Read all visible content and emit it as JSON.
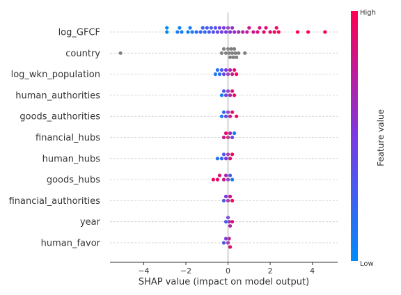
{
  "chart_data": {
    "type": "scatter",
    "subtype": "shap-beeswarm",
    "title": "",
    "xlabel": "SHAP value (impact on model output)",
    "xlim": [
      -5.6,
      5.2
    ],
    "xticks": [
      -4,
      -2,
      0,
      2,
      4
    ],
    "xtick_labels": [
      "−4",
      "−2",
      "0",
      "2",
      "4"
    ],
    "grid": "horizontal per feature, light gray",
    "features": [
      "log_GFCF",
      "country",
      "log_wkn_population",
      "human_authorities",
      "goods_authorities",
      "financial_hubs",
      "human_hubs",
      "goods_hubs",
      "financial_authorities",
      "year",
      "human_favor"
    ],
    "colorbar": {
      "label": "Feature value",
      "high_label": "High",
      "low_label": "Low",
      "low_color": "#008bfb",
      "high_color": "#ff0051"
    },
    "missing_value_color": "#808080",
    "points": [
      [
        [
          -2.9,
          0.0
        ],
        [
          -2.9,
          0.0
        ],
        [
          -2.4,
          0.1
        ],
        [
          -2.3,
          0.05
        ],
        [
          -2.2,
          0.1
        ],
        [
          -1.9,
          0.05
        ],
        [
          -1.8,
          0.1
        ],
        [
          -1.7,
          0.1
        ],
        [
          -1.5,
          0.2
        ],
        [
          -1.3,
          0.2
        ],
        [
          -1.2,
          0.25
        ],
        [
          -1.1,
          0.2
        ],
        [
          -1.0,
          0.3
        ],
        [
          -0.9,
          0.3
        ],
        [
          -0.8,
          0.3
        ],
        [
          -0.7,
          0.35
        ],
        [
          -0.6,
          0.35
        ],
        [
          -0.5,
          0.4
        ],
        [
          -0.4,
          0.45
        ],
        [
          -0.3,
          0.45
        ],
        [
          -0.2,
          0.5
        ],
        [
          -0.1,
          0.5
        ],
        [
          0.0,
          0.55
        ],
        [
          0.1,
          0.55
        ],
        [
          0.2,
          0.6
        ],
        [
          0.3,
          0.6
        ],
        [
          0.5,
          0.65
        ],
        [
          0.7,
          0.7
        ],
        [
          0.9,
          0.75
        ],
        [
          1.0,
          0.8
        ],
        [
          1.2,
          0.8
        ],
        [
          1.4,
          0.85
        ],
        [
          1.5,
          0.85
        ],
        [
          1.7,
          0.9
        ],
        [
          1.8,
          0.9
        ],
        [
          2.0,
          0.9
        ],
        [
          2.2,
          0.95
        ],
        [
          2.3,
          0.95
        ],
        [
          2.4,
          0.95
        ],
        [
          3.3,
          1.0
        ],
        [
          3.8,
          1.0
        ],
        [
          4.6,
          1.0
        ]
      ],
      [
        [
          -5.1,
          null
        ],
        [
          -0.3,
          null
        ],
        [
          -0.2,
          null
        ],
        [
          -0.1,
          null
        ],
        [
          0.0,
          null
        ],
        [
          0.05,
          null
        ],
        [
          0.1,
          null
        ],
        [
          0.15,
          null
        ],
        [
          0.2,
          null
        ],
        [
          0.25,
          null
        ],
        [
          0.3,
          null
        ],
        [
          0.35,
          null
        ],
        [
          0.4,
          null
        ],
        [
          0.5,
          null
        ],
        [
          0.8,
          null
        ]
      ],
      [
        [
          -0.6,
          0.1
        ],
        [
          -0.5,
          0.15
        ],
        [
          -0.4,
          0.2
        ],
        [
          -0.3,
          0.3
        ],
        [
          -0.2,
          0.4
        ],
        [
          -0.1,
          0.5
        ],
        [
          0.0,
          0.6
        ],
        [
          0.1,
          0.7
        ],
        [
          0.2,
          0.8
        ],
        [
          0.3,
          0.9
        ],
        [
          0.4,
          0.95
        ]
      ],
      [
        [
          -0.3,
          0.1
        ],
        [
          -0.2,
          0.3
        ],
        [
          -0.1,
          0.4
        ],
        [
          0.0,
          0.6
        ],
        [
          0.1,
          0.7
        ],
        [
          0.2,
          0.85
        ],
        [
          0.3,
          0.95
        ]
      ],
      [
        [
          -0.3,
          0.1
        ],
        [
          -0.2,
          0.2
        ],
        [
          -0.1,
          0.4
        ],
        [
          0.0,
          0.6
        ],
        [
          0.1,
          0.8
        ],
        [
          0.2,
          0.9
        ],
        [
          0.4,
          0.95
        ]
      ],
      [
        [
          -0.2,
          0.8
        ],
        [
          -0.1,
          0.9
        ],
        [
          0.0,
          0.85
        ],
        [
          0.1,
          0.7
        ],
        [
          0.2,
          0.4
        ],
        [
          0.3,
          0.1
        ]
      ],
      [
        [
          -0.5,
          0.15
        ],
        [
          -0.3,
          0.2
        ],
        [
          -0.2,
          0.3
        ],
        [
          -0.1,
          0.5
        ],
        [
          0.0,
          0.7
        ],
        [
          0.1,
          0.85
        ],
        [
          0.2,
          0.95
        ]
      ],
      [
        [
          -0.7,
          0.95
        ],
        [
          -0.5,
          0.9
        ],
        [
          -0.4,
          0.85
        ],
        [
          -0.2,
          0.8
        ],
        [
          -0.1,
          0.7
        ],
        [
          0.0,
          0.6
        ],
        [
          0.1,
          0.3
        ],
        [
          0.2,
          0.1
        ]
      ],
      [
        [
          -0.2,
          0.3
        ],
        [
          -0.1,
          0.5
        ],
        [
          0.0,
          0.7
        ],
        [
          0.1,
          0.85
        ],
        [
          0.2,
          0.95
        ]
      ],
      [
        [
          -0.1,
          0.3
        ],
        [
          0.0,
          0.5
        ],
        [
          0.05,
          0.6
        ],
        [
          0.1,
          0.7
        ],
        [
          0.2,
          0.9
        ]
      ],
      [
        [
          -0.2,
          0.3
        ],
        [
          -0.1,
          0.5
        ],
        [
          0.0,
          0.7
        ],
        [
          0.05,
          0.8
        ],
        [
          0.1,
          0.9
        ]
      ]
    ]
  }
}
